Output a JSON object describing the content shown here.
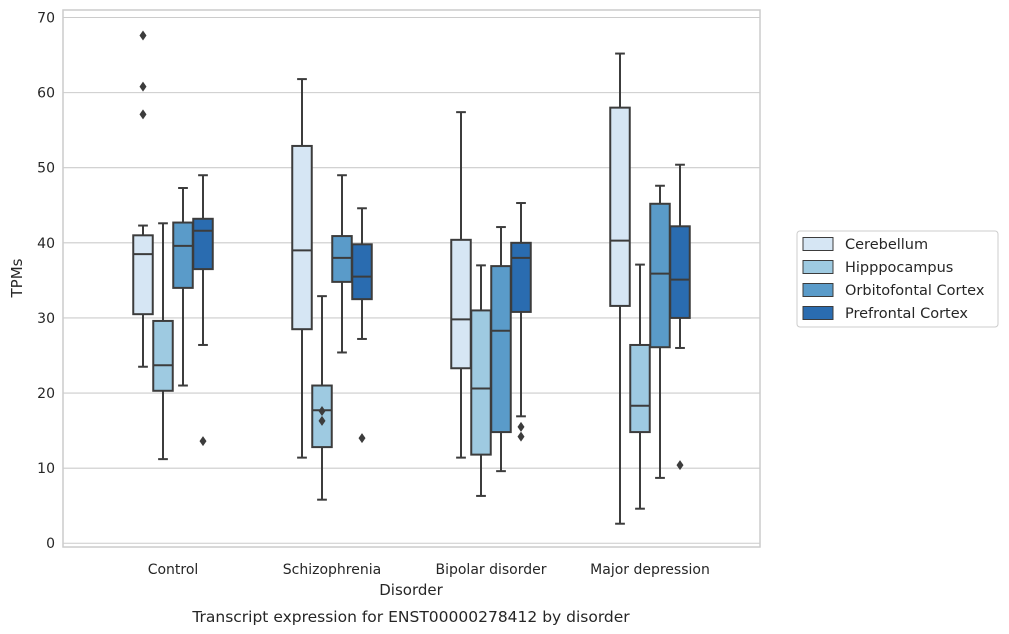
{
  "chart_data": {
    "type": "boxplot",
    "caption": "Transcript expression for ENST00000278412 by disorder",
    "xlabel": "Disorder",
    "ylabel": "TPMs",
    "ylim": [
      -0.5,
      71
    ],
    "yticks": [
      0,
      10,
      20,
      30,
      40,
      50,
      60,
      70
    ],
    "grid": "horizontal",
    "legend_position": "right",
    "categories": [
      "Control",
      "Schizophrenia",
      "Bipolar disorder",
      "Major depression"
    ],
    "series": [
      {
        "name": "Cerebellum",
        "color": "#d6e6f4",
        "boxes": [
          {
            "whislo": 23.5,
            "q1": 30.5,
            "med": 38.5,
            "q3": 41.0,
            "whishi": 42.3,
            "fliers": [
              57.1,
              60.8,
              67.6
            ]
          },
          {
            "whislo": 11.4,
            "q1": 28.5,
            "med": 39.0,
            "q3": 52.9,
            "whishi": 61.8,
            "fliers": []
          },
          {
            "whislo": 11.4,
            "q1": 23.3,
            "med": 29.8,
            "q3": 40.4,
            "whishi": 57.4,
            "fliers": []
          },
          {
            "whislo": 2.6,
            "q1": 31.6,
            "med": 40.3,
            "q3": 58.0,
            "whishi": 65.2,
            "fliers": []
          }
        ]
      },
      {
        "name": "Hipppocampus",
        "color": "#9ecae1",
        "boxes": [
          {
            "whislo": 11.2,
            "q1": 20.3,
            "med": 23.7,
            "q3": 29.6,
            "whishi": 42.6,
            "fliers": []
          },
          {
            "whislo": 5.8,
            "q1": 12.8,
            "med": 17.7,
            "q3": 21.0,
            "whishi": 32.9,
            "fliers": [
              16.3,
              17.6
            ]
          },
          {
            "whislo": 6.3,
            "q1": 11.8,
            "med": 20.6,
            "q3": 31.0,
            "whishi": 37.0,
            "fliers": []
          },
          {
            "whislo": 4.6,
            "q1": 14.8,
            "med": 18.3,
            "q3": 26.4,
            "whishi": 37.1,
            "fliers": []
          }
        ]
      },
      {
        "name": "Orbitofontal Cortex",
        "color": "#5a9bc9",
        "boxes": [
          {
            "whislo": 21.0,
            "q1": 34.0,
            "med": 39.6,
            "q3": 42.7,
            "whishi": 47.3,
            "fliers": []
          },
          {
            "whislo": 25.4,
            "q1": 34.8,
            "med": 38.0,
            "q3": 40.9,
            "whishi": 49.0,
            "fliers": []
          },
          {
            "whislo": 9.6,
            "q1": 14.8,
            "med": 28.3,
            "q3": 36.9,
            "whishi": 42.1,
            "fliers": []
          },
          {
            "whislo": 8.7,
            "q1": 26.1,
            "med": 35.9,
            "q3": 45.2,
            "whishi": 47.6,
            "fliers": []
          }
        ]
      },
      {
        "name": "Prefrontal Cortex",
        "color": "#2a6cb0",
        "boxes": [
          {
            "whislo": 26.4,
            "q1": 36.5,
            "med": 41.6,
            "q3": 43.2,
            "whishi": 49.0,
            "fliers": [
              13.6
            ]
          },
          {
            "whislo": 27.2,
            "q1": 32.5,
            "med": 35.5,
            "q3": 39.8,
            "whishi": 44.6,
            "fliers": [
              14.0
            ]
          },
          {
            "whislo": 16.9,
            "q1": 30.8,
            "med": 38.0,
            "q3": 40.0,
            "whishi": 45.3,
            "fliers": [
              14.2,
              15.5
            ]
          },
          {
            "whislo": 26.0,
            "q1": 30.0,
            "med": 35.1,
            "q3": 42.2,
            "whishi": 50.4,
            "fliers": [
              10.4
            ]
          }
        ]
      }
    ]
  }
}
